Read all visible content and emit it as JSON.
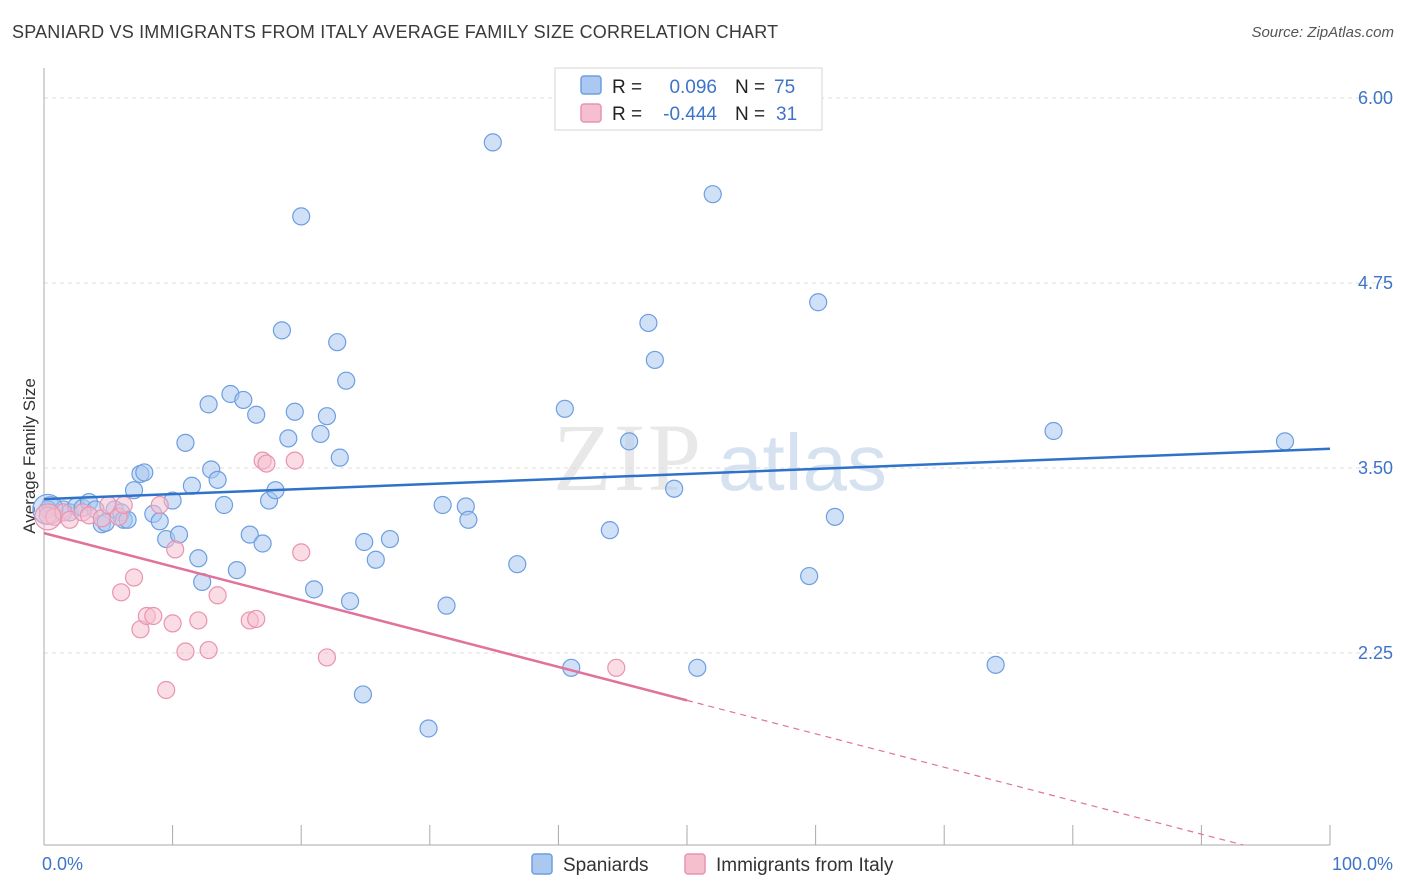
{
  "title": "SPANIARD VS IMMIGRANTS FROM ITALY AVERAGE FAMILY SIZE CORRELATION CHART",
  "source": "Source: ZipAtlas.com",
  "watermark": {
    "zip": "ZIP",
    "atlas": "atlas"
  },
  "colors": {
    "blue_fill": "#aac8f0",
    "blue_stroke": "#6d9ee0",
    "blue_line": "#2f72c9",
    "pink_fill": "#f6bfd0",
    "pink_stroke": "#e993b0",
    "pink_line": "#e0729b",
    "label_blue": "#3d74c9",
    "grid": "#dddddd"
  },
  "chart_data": {
    "type": "scatter",
    "ylabel": "Average Family Size",
    "xlim": [
      0,
      100
    ],
    "ylim": [
      1.1,
      6.1
    ],
    "x_tick_labels": [
      "0.0%",
      "100.0%"
    ],
    "y_ticks": [
      2.25,
      3.5,
      4.75,
      6.0
    ],
    "y_tick_labels": [
      "2.25",
      "3.50",
      "4.75",
      "6.00"
    ],
    "grid": "horizontal dashed",
    "legend_placement": "top-center",
    "stats_legend": [
      {
        "r_label": "R =",
        "r_value": "0.096",
        "n_label": "N =",
        "n_value": "75",
        "series": "Spaniards"
      },
      {
        "r_label": "R =",
        "r_value": "-0.444",
        "n_label": "N =",
        "n_value": "31",
        "series": "Immigrants from Italy"
      }
    ],
    "series": [
      {
        "name": "Spaniards",
        "color": "#6d9ee0",
        "trend": {
          "x0": 0,
          "y0": 3.29,
          "x1": 100,
          "y1": 3.63
        },
        "points": [
          [
            0.5,
            3.25
          ],
          [
            1.5,
            3.22
          ],
          [
            2.0,
            3.2
          ],
          [
            2.5,
            3.24
          ],
          [
            3.0,
            3.23
          ],
          [
            3.5,
            3.27
          ],
          [
            4.0,
            3.22
          ],
          [
            4.5,
            3.12
          ],
          [
            4.8,
            3.13
          ],
          [
            5.5,
            3.22
          ],
          [
            6.0,
            3.2
          ],
          [
            6.2,
            3.15
          ],
          [
            6.5,
            3.15
          ],
          [
            7.0,
            3.35
          ],
          [
            7.5,
            3.46
          ],
          [
            7.8,
            3.47
          ],
          [
            8.5,
            3.19
          ],
          [
            9.0,
            3.14
          ],
          [
            9.5,
            3.02
          ],
          [
            10.0,
            3.28
          ],
          [
            10.5,
            3.05
          ],
          [
            11.0,
            3.67
          ],
          [
            11.5,
            3.38
          ],
          [
            12.0,
            2.89
          ],
          [
            12.3,
            2.73
          ],
          [
            12.8,
            3.93
          ],
          [
            13.0,
            3.49
          ],
          [
            13.5,
            3.42
          ],
          [
            14.0,
            3.25
          ],
          [
            14.5,
            4.0
          ],
          [
            15.0,
            2.81
          ],
          [
            15.5,
            3.96
          ],
          [
            16.0,
            3.05
          ],
          [
            16.5,
            3.86
          ],
          [
            17.0,
            2.99
          ],
          [
            17.5,
            3.28
          ],
          [
            18.0,
            3.35
          ],
          [
            18.5,
            4.43
          ],
          [
            19.0,
            3.7
          ],
          [
            19.5,
            3.88
          ],
          [
            20.0,
            5.2
          ],
          [
            21.0,
            2.68
          ],
          [
            21.5,
            3.73
          ],
          [
            22.0,
            3.85
          ],
          [
            22.8,
            4.35
          ],
          [
            23.0,
            3.57
          ],
          [
            23.5,
            4.09
          ],
          [
            23.8,
            2.6
          ],
          [
            24.8,
            1.97
          ],
          [
            24.9,
            3.0
          ],
          [
            25.8,
            2.88
          ],
          [
            26.9,
            3.02
          ],
          [
            29.9,
            1.74
          ],
          [
            31.0,
            3.25
          ],
          [
            31.3,
            2.57
          ],
          [
            32.8,
            3.24
          ],
          [
            33.0,
            3.15
          ],
          [
            34.9,
            5.7
          ],
          [
            36.8,
            2.85
          ],
          [
            40.5,
            3.9
          ],
          [
            41.0,
            2.15
          ],
          [
            44.0,
            3.08
          ],
          [
            45.5,
            3.68
          ],
          [
            47.0,
            4.48
          ],
          [
            47.5,
            4.23
          ],
          [
            49.0,
            3.36
          ],
          [
            50.8,
            2.15
          ],
          [
            52.0,
            5.35
          ],
          [
            59.5,
            2.77
          ],
          [
            61.5,
            3.17
          ],
          [
            60.2,
            4.62
          ],
          [
            74.0,
            2.17
          ],
          [
            78.5,
            3.75
          ],
          [
            96.5,
            3.68
          ],
          [
            0.3,
            3.22
          ]
        ]
      },
      {
        "name": "Immigrants from Italy",
        "color": "#e993b0",
        "trend": {
          "x0": 0,
          "y0": 3.06,
          "x1": 50,
          "y1": 1.93,
          "dash_x1": 100,
          "dash_y1": 0.8
        },
        "points": [
          [
            0.3,
            3.18
          ],
          [
            0.8,
            3.17
          ],
          [
            1.5,
            3.2
          ],
          [
            2.0,
            3.15
          ],
          [
            3.0,
            3.2
          ],
          [
            3.5,
            3.18
          ],
          [
            4.5,
            3.16
          ],
          [
            5.0,
            3.25
          ],
          [
            5.8,
            3.17
          ],
          [
            6.0,
            2.66
          ],
          [
            6.2,
            3.25
          ],
          [
            7.0,
            2.76
          ],
          [
            7.5,
            2.41
          ],
          [
            8.0,
            2.5
          ],
          [
            8.5,
            2.5
          ],
          [
            9.0,
            3.25
          ],
          [
            9.5,
            2.0
          ],
          [
            10.0,
            2.45
          ],
          [
            10.2,
            2.95
          ],
          [
            11.0,
            2.26
          ],
          [
            12.0,
            2.47
          ],
          [
            12.8,
            2.27
          ],
          [
            13.5,
            2.64
          ],
          [
            16.0,
            2.47
          ],
          [
            16.5,
            2.48
          ],
          [
            17.0,
            3.55
          ],
          [
            17.3,
            3.53
          ],
          [
            19.5,
            3.55
          ],
          [
            20.0,
            2.93
          ],
          [
            22.0,
            2.22
          ],
          [
            44.5,
            2.15
          ]
        ]
      }
    ]
  }
}
